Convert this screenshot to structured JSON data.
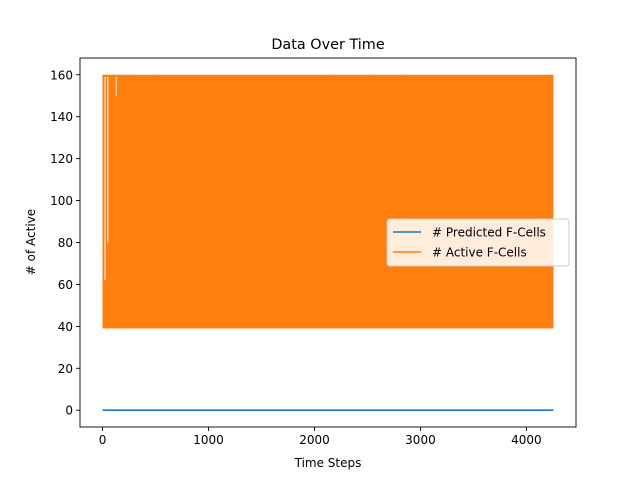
{
  "chart_data": {
    "type": "line",
    "title": "Data Over Time",
    "xlabel": "Time Steps",
    "ylabel": "# of Active",
    "xlim": [
      -213,
      4468
    ],
    "ylim": [
      -8,
      168
    ],
    "xticks": [
      0,
      1000,
      2000,
      3000,
      4000
    ],
    "yticks": [
      0,
      20,
      40,
      60,
      80,
      100,
      120,
      140,
      160
    ],
    "grid": false,
    "legend": {
      "placement": "center-right"
    },
    "series": [
      {
        "name": "# Predicted F-Cells",
        "color": "#1f77b4",
        "x": [
          0,
          4255
        ],
        "values": [
          0,
          0
        ]
      },
      {
        "name": "# Active F-Cells",
        "color": "#ff7f0e",
        "x_range": [
          0,
          4255
        ],
        "values_range": [
          39,
          160
        ],
        "pattern": "dense oscillation between about 39 and 160 at every time step",
        "visible_dips": [
          {
            "x": 5,
            "y": 43
          },
          {
            "x": 30,
            "y": 41
          },
          {
            "x": 60,
            "y": 40
          },
          {
            "x": 95,
            "y": 39
          },
          {
            "x": 145,
            "y": 39
          },
          {
            "x": 200,
            "y": 57
          },
          {
            "x": 255,
            "y": 52
          },
          {
            "x": 530,
            "y": 43
          },
          {
            "x": 2130,
            "y": 43
          },
          {
            "x": 2550,
            "y": 42
          },
          {
            "x": 2820,
            "y": 42
          }
        ]
      }
    ]
  }
}
